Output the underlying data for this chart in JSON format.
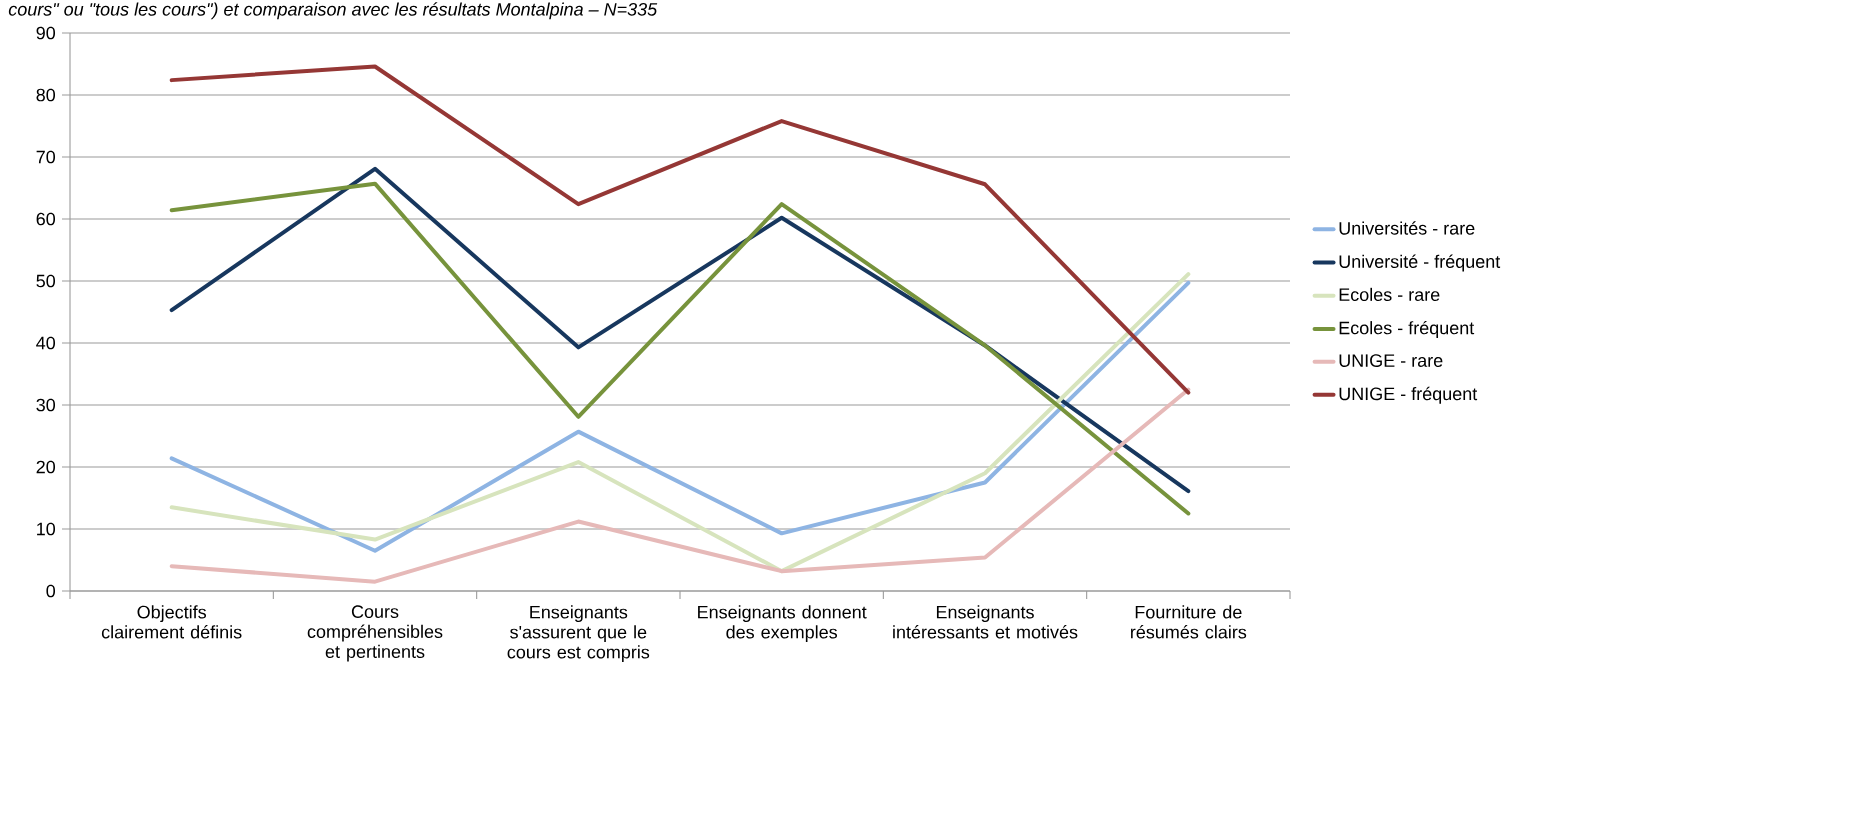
{
  "chart_data": {
    "type": "line",
    "title": "cours\" ou \"tous les cours\") et comparaison avec les résultats Montalpina – N=335",
    "categories": [
      "Objectifs clairement définis",
      "Cours compréhensibles et pertinents",
      "Enseignants s'assurent que le cours est compris",
      "Enseignants donnent des exemples",
      "Enseignants intéressants et motivés",
      "Fourniture de résumés clairs"
    ],
    "series": [
      {
        "name": "Universités - rare",
        "color": "#8eb4e3",
        "values": [
          21.4,
          6.5,
          25.7,
          9.3,
          17.5,
          49.7
        ]
      },
      {
        "name": "Université - fréquent",
        "color": "#17375e",
        "values": [
          45.3,
          68.1,
          39.3,
          60.2,
          39.6,
          16.1
        ]
      },
      {
        "name": "Ecoles - rare",
        "color": "#d7e4bd",
        "values": [
          13.5,
          8.3,
          20.8,
          3.2,
          19,
          51.1
        ]
      },
      {
        "name": "Ecoles - fréquent",
        "color": "#77933c",
        "values": [
          61.4,
          65.7,
          28.1,
          62.4,
          39.6,
          12.5
        ]
      },
      {
        "name": "UNIGE - rare",
        "color": "#e6b9b8",
        "values": [
          4,
          1.5,
          11.2,
          3.2,
          5.4,
          32.5
        ]
      },
      {
        "name": "UNIGE - fréquent",
        "color": "#953735",
        "values": [
          82.4,
          84.6,
          62.4,
          75.8,
          65.6,
          32
        ]
      }
    ],
    "ylim": [
      0,
      90
    ],
    "yticks": [
      0,
      10,
      20,
      30,
      40,
      50,
      60,
      70,
      80,
      90
    ],
    "grid": "y",
    "legend": "right",
    "marker": "none",
    "line_style": "solid"
  }
}
